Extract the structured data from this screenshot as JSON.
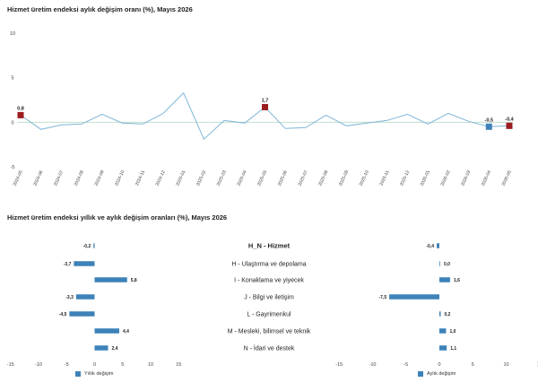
{
  "chart_data": [
    {
      "type": "line",
      "title": "Hizmet üretim endeksi aylık değişim oranı (%), Mayıs 2026",
      "x": [
        "2024-05",
        "2024-06",
        "2024-07",
        "2024-08",
        "2024-09",
        "2024-10",
        "2024-11",
        "2024-12",
        "2025-01",
        "2025-02",
        "2025-03",
        "2025-04",
        "2025-05",
        "2025-06",
        "2025-07",
        "2025-08",
        "2025-09",
        "2025-10",
        "2025-11",
        "2025-12",
        "2026-01",
        "2026-02",
        "2026-03",
        "2026-04",
        "2026-05"
      ],
      "series": [
        {
          "values": [
            0.8,
            -0.8,
            -0.3,
            -0.2,
            0.9,
            -0.1,
            -0.2,
            1.0,
            3.3,
            -1.9,
            0.2,
            -0.1,
            1.7,
            -0.7,
            -0.6,
            0.8,
            -0.4,
            -0.1,
            0.2,
            0.9,
            -0.2,
            1.0,
            0.1,
            -0.5,
            -0.4
          ]
        }
      ],
      "highlight_labels": [
        {
          "x": "2024-05",
          "label": "0,8",
          "color": "#9b1c1f"
        },
        {
          "x": "2025-05",
          "label": "1,7",
          "color": "#9b1c1f"
        },
        {
          "x": "2026-04",
          "label": "-0,5",
          "color": "#3d82b8"
        },
        {
          "x": "2026-05",
          "label": "-0,4",
          "color": "#9b1c1f"
        }
      ],
      "y_ticks": [
        10,
        5,
        0,
        -5
      ],
      "ylim": [
        -5,
        10
      ],
      "line_color": "#7fb6d8"
    },
    {
      "type": "bar",
      "title": "Hizmet üretim endeksi yıllık ve aylık değişim oranları (%), Mayıs 2026",
      "categories": [
        "H_N - Hizmet",
        "H - Ulaştırma ve depolama",
        "I - Konaklama ve yiyecek",
        "J - Bilgi ve iletişim",
        "L - Gayrimenkul",
        "M - Mesleki, bilimsel ve teknik",
        "N - İdari ve destek"
      ],
      "series": [
        {
          "name": "Yıllık değişim",
          "values": [
            -0.2,
            -3.7,
            5.8,
            -3.3,
            -4.5,
            4.4,
            2.4
          ],
          "labels": [
            "-0,2",
            "-3,7",
            "5,8",
            "-3,3",
            "-4,5",
            "4,4",
            "2,4"
          ]
        },
        {
          "name": "Aylık değişim",
          "values": [
            -0.4,
            0.0,
            1.6,
            -7.5,
            0.2,
            1.0,
            1.1
          ],
          "labels": [
            "-0,4",
            "0,0",
            "1,6",
            "-7,5",
            "0,2",
            "1,0",
            "1,1"
          ]
        }
      ],
      "x_ticks": [
        -15,
        -10,
        -5,
        0,
        5,
        10,
        15
      ],
      "xlim": [
        -15,
        15
      ],
      "bar_color": "#3d82b8"
    }
  ]
}
